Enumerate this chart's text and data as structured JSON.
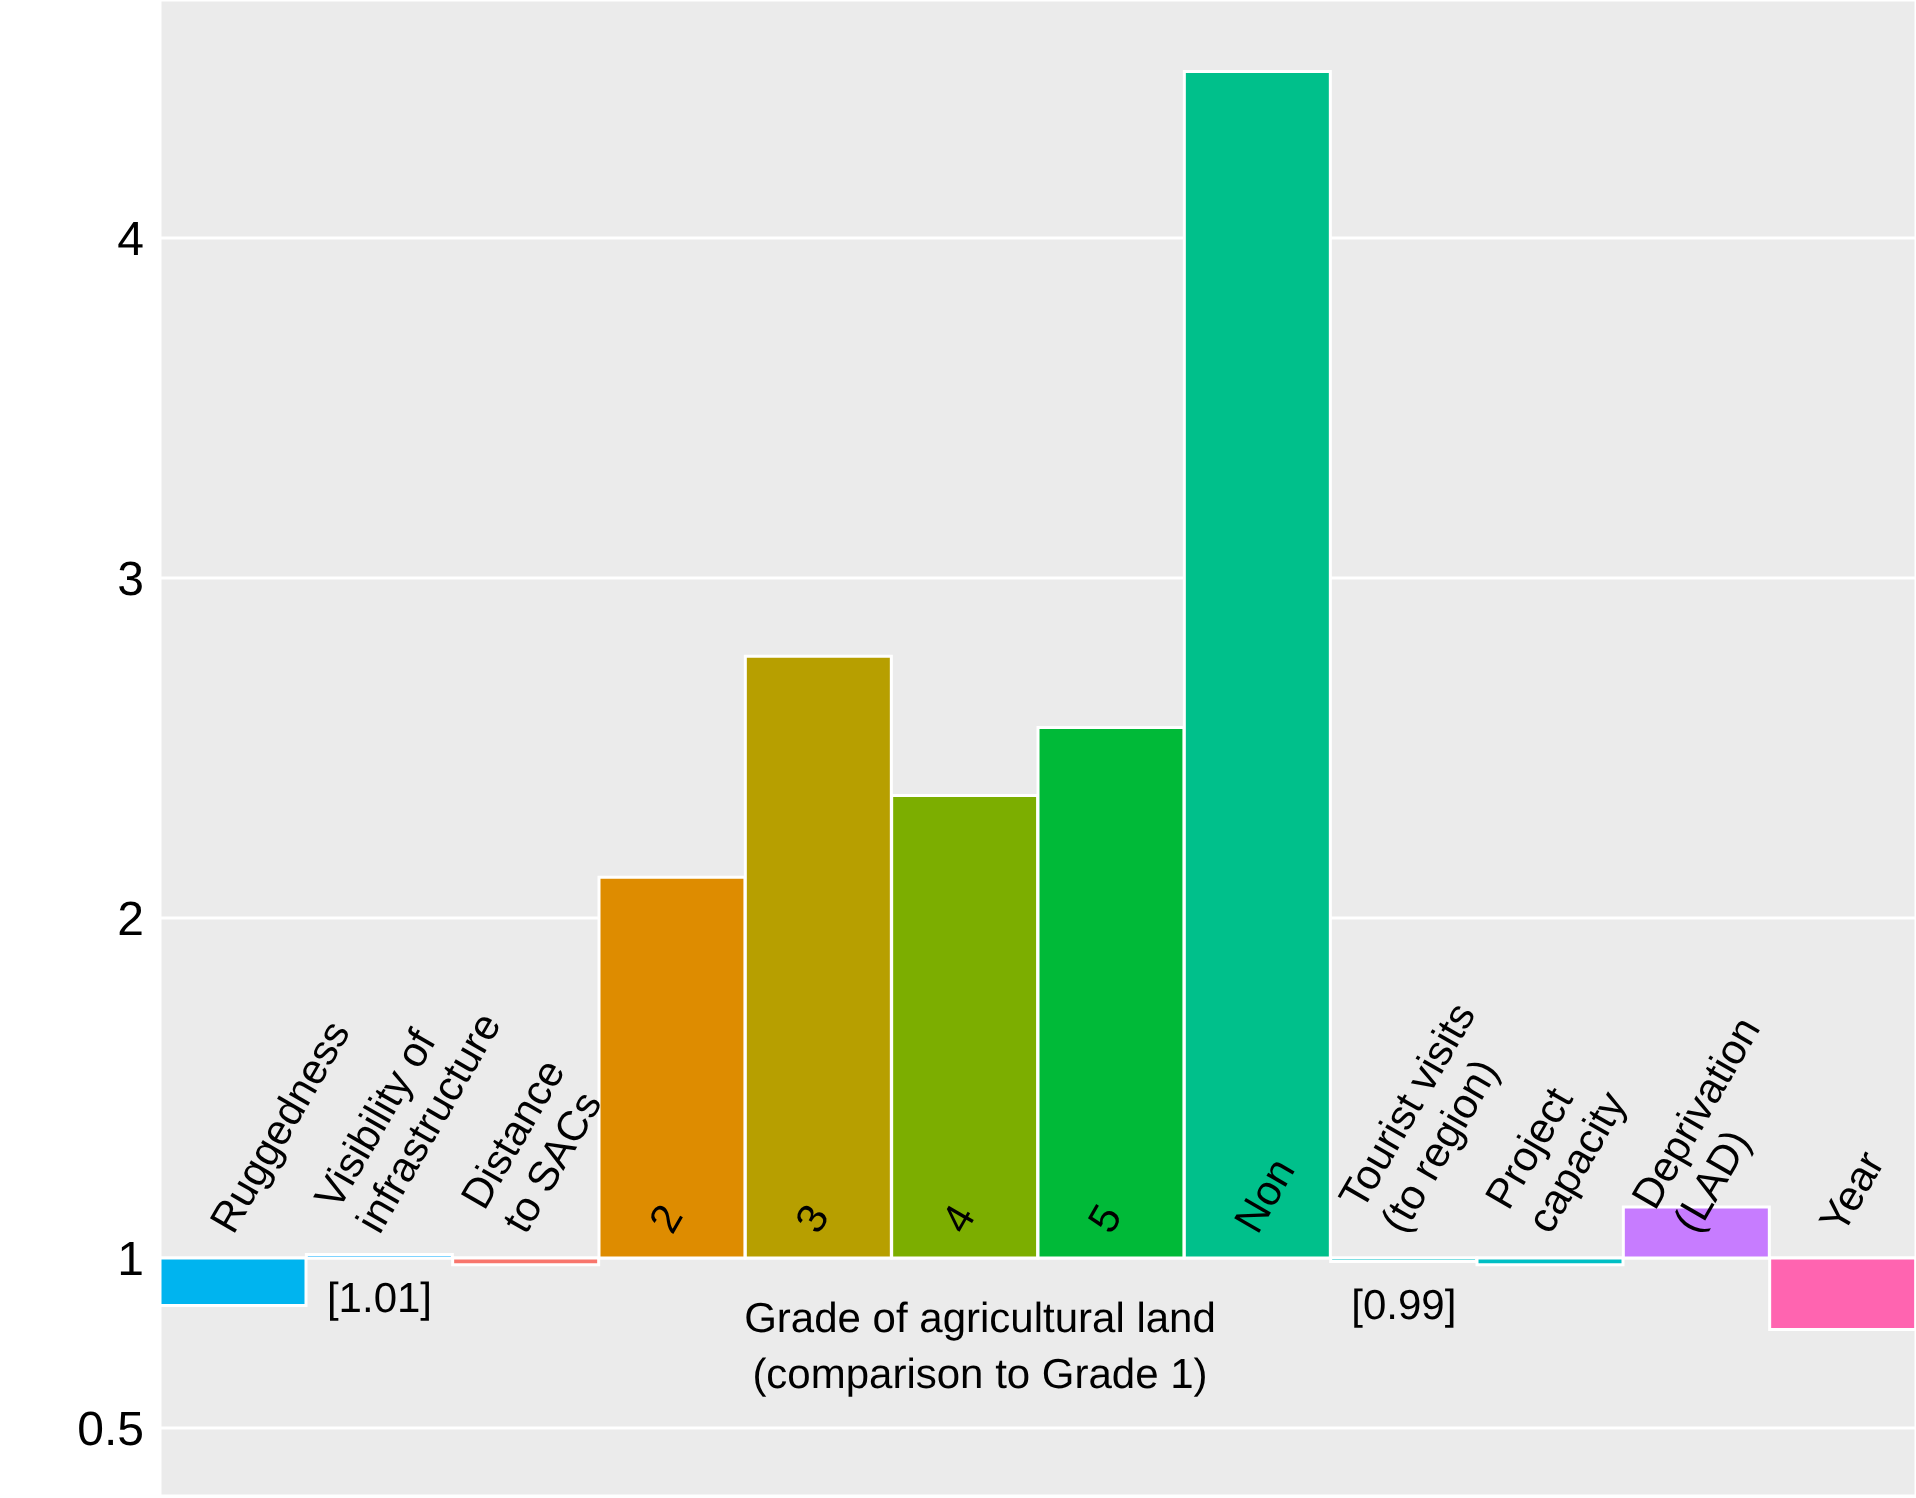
{
  "chart_data": {
    "type": "bar",
    "categories": [
      "Ruggedness",
      "Visibility of\ninfrastructure",
      "Distance\nto SACs",
      "2",
      "3",
      "4",
      "5",
      "Non",
      "Tourist visits\n(to region)",
      "Project\ncapacity",
      "Deprivation\n(LAD)",
      "Year"
    ],
    "base": [
      1,
      1,
      1,
      1,
      1,
      1,
      1,
      1,
      1,
      1,
      1,
      1
    ],
    "values": [
      -0.14,
      0.01,
      -0.02,
      1.12,
      1.77,
      1.36,
      1.56,
      3.49,
      -0.01,
      -0.02,
      0.15,
      -0.21
    ],
    "colors": [
      "#00b4ef",
      "#00a9ff",
      "#f8766d",
      "#de8c00",
      "#b79f00",
      "#7cae00",
      "#00ba38",
      "#00c08b",
      "#00bfc4",
      "#00bfc4",
      "#c77cff",
      "#ff64b0"
    ],
    "ylim": [
      0.3,
      4.7
    ],
    "yticks": [
      0.5,
      1,
      2,
      3,
      4
    ],
    "grid": true,
    "annotations": [
      {
        "text": "[1.01]",
        "x": "Visibility of\ninfrastructure",
        "y": 1.01
      },
      {
        "text": "[0.99]",
        "x": "Tourist visits\n(to region)",
        "y": 0.99
      },
      "Grade of agricultural land\n(comparison to Grade 1)"
    ]
  }
}
